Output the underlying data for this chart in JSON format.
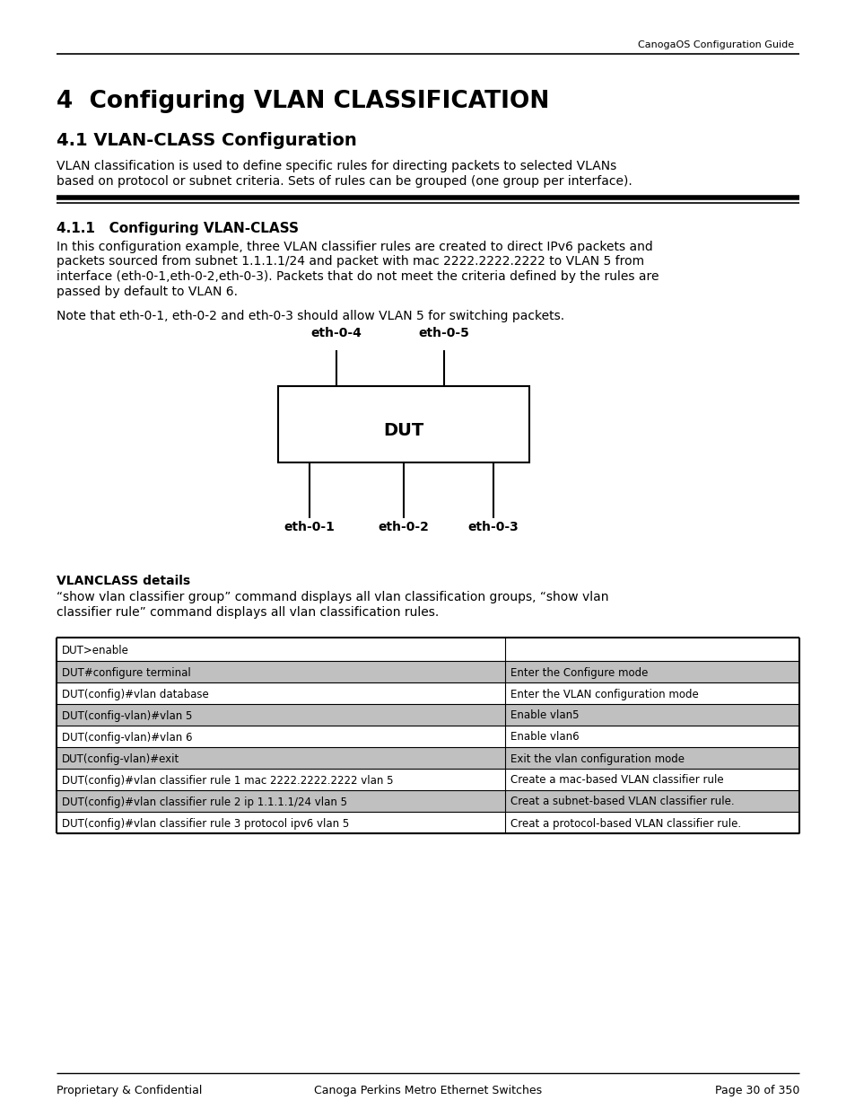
{
  "header_text": "CanogaOS Configuration Guide",
  "title": "4  Configuring VLAN CLASSIFICATION",
  "subtitle": "4.1 VLAN-CLASS Configuration",
  "body_text": "VLAN classification is used to define specific rules for directing packets to selected VLANs\nbased on protocol or subnet criteria. Sets of rules can be grouped (one group per interface).",
  "section_title": "4.1.1   Configuring VLAN-CLASS",
  "section_body": "In this configuration example, three VLAN classifier rules are created to direct IPv6 packets and\npackets sourced from subnet 1.1.1.1/24 and packet with mac 2222.2222.2222 to VLAN 5 from\ninterface (eth-0-1,eth-0-2,eth-0-3). Packets that do not meet the criteria defined by the rules are\npassed by default to VLAN 6.",
  "note_text": "Note that eth-0-1, eth-0-2 and eth-0-3 should allow VLAN 5 for switching packets.",
  "vlanclass_bold": "VLANCLASS details",
  "vlanclass_body": "“show vlan classifier group” command displays all vlan classification groups, “show vlan\nclassifier rule” command displays all vlan classification rules.",
  "footer_left": "Proprietary & Confidential",
  "footer_center": "Canoga Perkins Metro Ethernet Switches",
  "footer_right": "Page 30 of 350",
  "table_rows": [
    [
      "DUT>enable",
      ""
    ],
    [
      "DUT#configure terminal",
      "Enter the Configure mode"
    ],
    [
      "DUT(config)#vlan database",
      "Enter the VLAN configuration mode"
    ],
    [
      "DUT(config-vlan)#vlan 5",
      "Enable vlan5"
    ],
    [
      "DUT(config-vlan)#vlan 6",
      "Enable vlan6"
    ],
    [
      "DUT(config-vlan)#exit",
      "Exit the vlan configuration mode"
    ],
    [
      "DUT(config)#vlan classifier rule 1 mac 2222.2222.2222 vlan 5",
      "Create a mac-based VLAN classifier rule"
    ],
    [
      "DUT(config)#vlan classifier rule 2 ip 1.1.1.1/24 vlan 5",
      "Creat a subnet-based VLAN classifier rule."
    ],
    [
      "DUT(config)#vlan classifier rule 3 protocol ipv6 vlan 5",
      "Creat a protocol-based VLAN classifier rule."
    ]
  ],
  "bg_color": "#ffffff",
  "text_color": "#000000",
  "table_stripe_color": "#c0c0c0",
  "table_border_color": "#000000"
}
